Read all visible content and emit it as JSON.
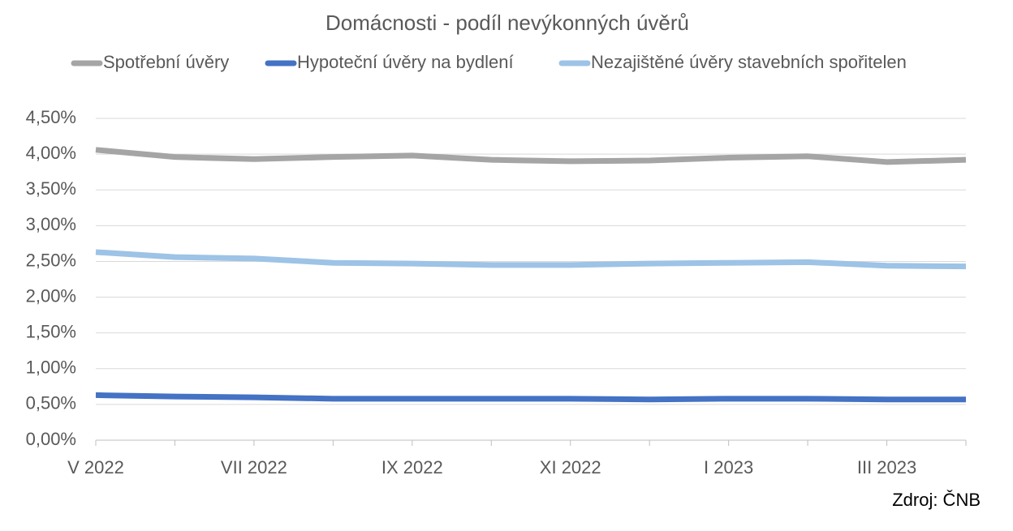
{
  "chart_data": {
    "type": "line",
    "title": "Domácnosti - podíl nevýkonných úvěrů",
    "categories": [
      "V 2022",
      null,
      "VII 2022",
      null,
      "IX 2022",
      null,
      "XI 2022",
      null,
      "I 2023",
      null,
      "III 2023",
      null
    ],
    "series": [
      {
        "name": "Spotřební úvěry",
        "color": "#a5a5a5",
        "values": [
          4.06,
          3.96,
          3.93,
          3.96,
          3.98,
          3.92,
          3.9,
          3.91,
          3.95,
          3.97,
          3.89,
          3.92
        ]
      },
      {
        "name": "Hypoteční úvěry na bydlení",
        "color": "#4472c4",
        "values": [
          0.63,
          0.61,
          0.6,
          0.58,
          0.58,
          0.58,
          0.58,
          0.57,
          0.58,
          0.58,
          0.57,
          0.57
        ]
      },
      {
        "name": "Nezajištěné úvěry stavebních spořitelen",
        "color": "#9dc3e6",
        "values": [
          2.63,
          2.56,
          2.54,
          2.48,
          2.47,
          2.45,
          2.45,
          2.47,
          2.48,
          2.49,
          2.44,
          2.43
        ]
      }
    ],
    "ylim": [
      0,
      4.5
    ],
    "yticks": [
      {
        "value": 0,
        "label": "0,00%"
      },
      {
        "value": 0.5,
        "label": "0,50%"
      },
      {
        "value": 1,
        "label": "1,00%"
      },
      {
        "value": 1.5,
        "label": "1,50%"
      },
      {
        "value": 2,
        "label": "2,00%"
      },
      {
        "value": 2.5,
        "label": "2,50%"
      },
      {
        "value": 3,
        "label": "3,00%"
      },
      {
        "value": 3.5,
        "label": "3,50%"
      },
      {
        "value": 4,
        "label": "4,00%"
      },
      {
        "value": 4.5,
        "label": "4,50%"
      }
    ],
    "grid": true,
    "legend": "top",
    "annotation": "Zdroj: ČNB"
  }
}
